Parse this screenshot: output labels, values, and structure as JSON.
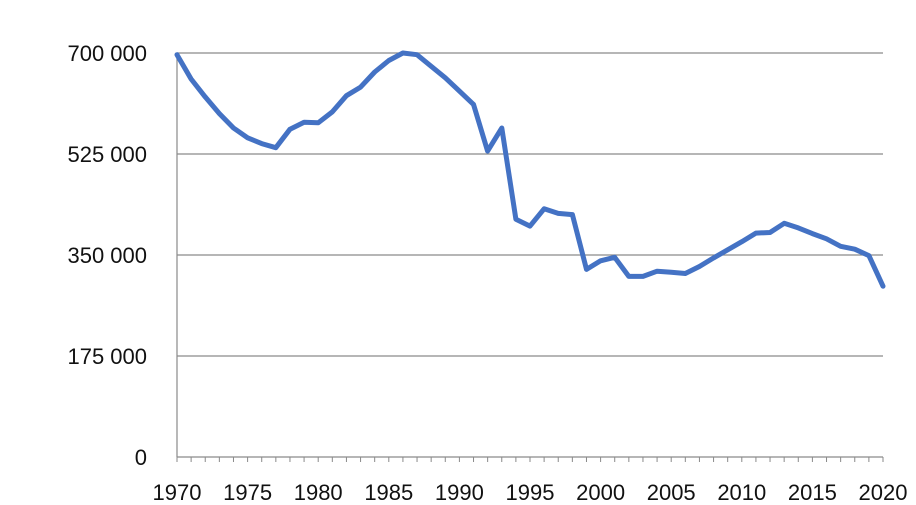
{
  "chart_data": {
    "type": "line",
    "title": "",
    "xlabel": "",
    "ylabel": "",
    "xlim": [
      1970,
      2020
    ],
    "ylim": [
      0,
      700000
    ],
    "grid": true,
    "legend": "none",
    "y_ticks": [
      0,
      175000,
      350000,
      525000,
      700000
    ],
    "y_tick_labels": [
      "0",
      "175 000",
      "350 000",
      "525 000",
      "700 000"
    ],
    "x_ticks": [
      1970,
      1975,
      1980,
      1985,
      1990,
      1995,
      2000,
      2005,
      2010,
      2015,
      2020
    ],
    "x_tick_labels": [
      "1970",
      "1975",
      "1980",
      "1985",
      "1990",
      "1995",
      "2000",
      "2005",
      "2010",
      "2015",
      "2020"
    ],
    "colors": {
      "line": "#4472C4",
      "grid": "#8a8a8a"
    },
    "series": [
      {
        "x": [
          1970,
          1971,
          1972,
          1973,
          1974,
          1975,
          1976,
          1977,
          1978,
          1979,
          1980,
          1981,
          1982,
          1983,
          1984,
          1985,
          1986,
          1987,
          1988,
          1989,
          1990,
          1991,
          1992,
          1993,
          1994,
          1995,
          1996,
          1997,
          1998,
          1999,
          2000,
          2001,
          2002,
          2003,
          2004,
          2005,
          2006,
          2007,
          2008,
          2009,
          2010,
          2011,
          2012,
          2013,
          2014,
          2015,
          2016,
          2017,
          2018,
          2019,
          2020
        ],
        "values": [
          697000,
          655000,
          624000,
          595000,
          570000,
          553000,
          543000,
          536000,
          568000,
          580000,
          579000,
          598000,
          626000,
          641000,
          667000,
          687000,
          700000,
          697000,
          677000,
          657000,
          634000,
          611000,
          530000,
          570000,
          412000,
          400000,
          430000,
          422000,
          420000,
          325000,
          340000,
          346000,
          313000,
          313000,
          322000,
          320000,
          318000,
          330000,
          345000,
          359000,
          373000,
          388000,
          389000,
          405000,
          397000,
          387000,
          378000,
          365000,
          360000,
          349000,
          296000
        ]
      }
    ]
  }
}
